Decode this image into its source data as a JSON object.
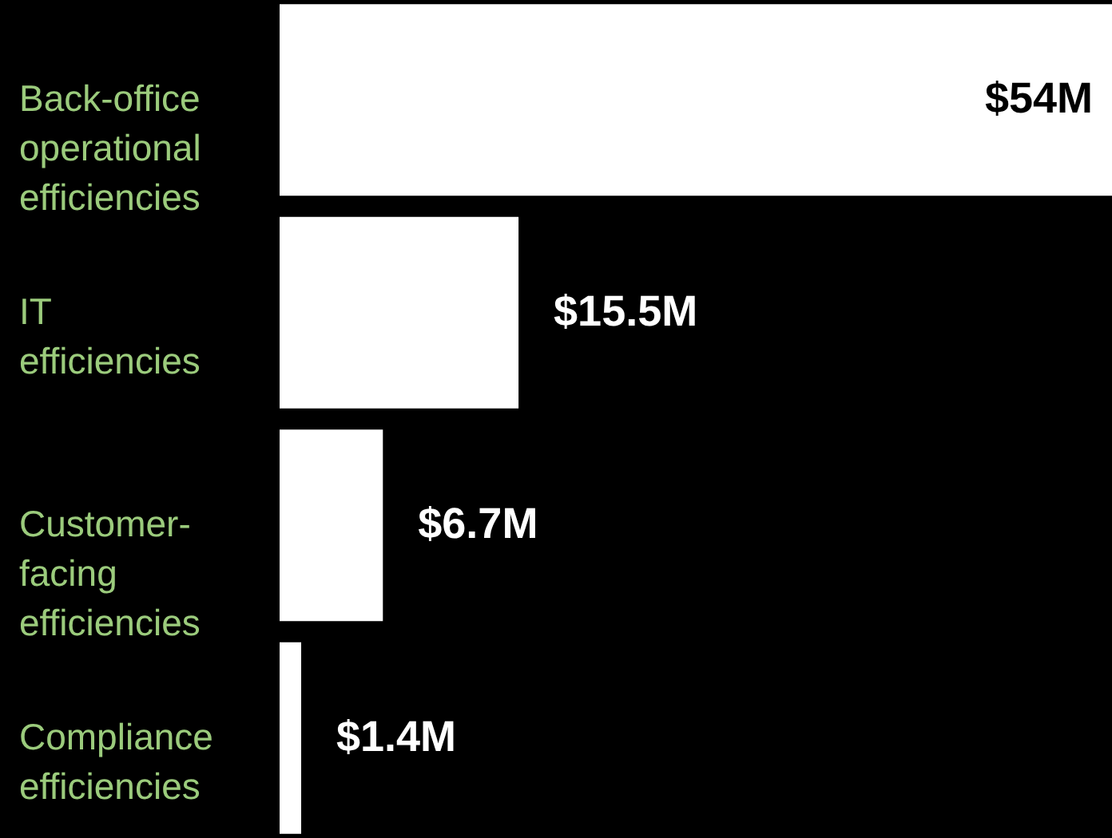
{
  "chart_data": {
    "type": "bar",
    "orientation": "horizontal",
    "categories": [
      "Back-office operational efficiencies",
      "IT efficiencies",
      "Customer-facing efficiencies",
      "Compliance efficiencies"
    ],
    "values": [
      54,
      15.5,
      6.7,
      1.4
    ],
    "value_labels": [
      "$54M",
      "$15.5M",
      "$6.7M",
      "$1.4M"
    ],
    "color": "#ffffff",
    "xlim": [
      0,
      54
    ],
    "tick_labels": "y"
  }
}
